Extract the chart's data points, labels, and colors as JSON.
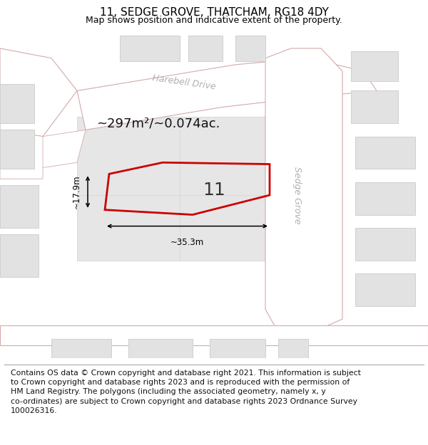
{
  "title": "11, SEDGE GROVE, THATCHAM, RG18 4DY",
  "subtitle": "Map shows position and indicative extent of the property.",
  "footer": "Contains OS data © Crown copyright and database right 2021. This information is subject\nto Crown copyright and database rights 2023 and is reproduced with the permission of\nHM Land Registry. The polygons (including the associated geometry, namely x, y\nco-ordinates) are subject to Crown copyright and database rights 2023 Ordnance Survey\n100026316.",
  "area_label": "~297m²/~0.074ac.",
  "number_label": "11",
  "width_label": "~35.3m",
  "height_label": "~17.9m",
  "road_label_1": "Harebell Drive",
  "road_label_2": "Sedge Grove",
  "map_bg": "#efefef",
  "road_fill": "#ffffff",
  "road_edge": "#d4aaaa",
  "building_fill": "#e2e2e2",
  "building_edge": "#d0d0d0",
  "plot_edge": "#cc0000",
  "title_fontsize": 11,
  "subtitle_fontsize": 9,
  "area_fontsize": 13,
  "number_fontsize": 18,
  "road_label_fontsize": 9,
  "dim_fontsize": 8.5,
  "footer_fontsize": 7.8
}
